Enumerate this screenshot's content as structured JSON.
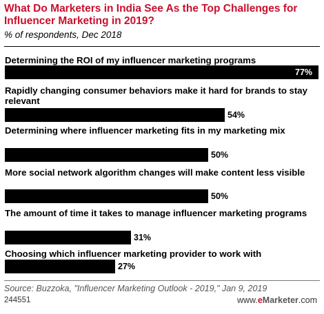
{
  "header": {
    "title": "What Do Marketers in India See As the Top Challenges for Influencer Marketing in 2019?",
    "subtitle": "% of respondents, Dec 2018"
  },
  "chart_data": {
    "type": "bar",
    "orientation": "horizontal",
    "categories": [
      "Determining the ROI of my influencer marketing programs",
      "Rapidly changing consumer behaviors make it hard for brands to stay relevant",
      "Determining where influencer marketing fits in my marketing mix",
      "More social network algorithm changes will make content less visible",
      "The amount of time it takes to manage influencer marketing programs",
      "Choosing which influencer marketing provider to work with"
    ],
    "values": [
      77,
      54,
      50,
      50,
      31,
      27
    ],
    "value_labels": [
      "77%",
      "54%",
      "50%",
      "50%",
      "31%",
      "27%"
    ],
    "bar_color": "#000000",
    "title_color": "#c8102e"
  },
  "footer": {
    "source": "Source: Buzzoka, \"Influencer Marketing Outlook - 2019,\" Jan 9, 2019",
    "chart_id": "244551",
    "brand_prefix": "www.",
    "brand_e": "e",
    "brand_name": "Marketer",
    "brand_suffix": ".com"
  }
}
